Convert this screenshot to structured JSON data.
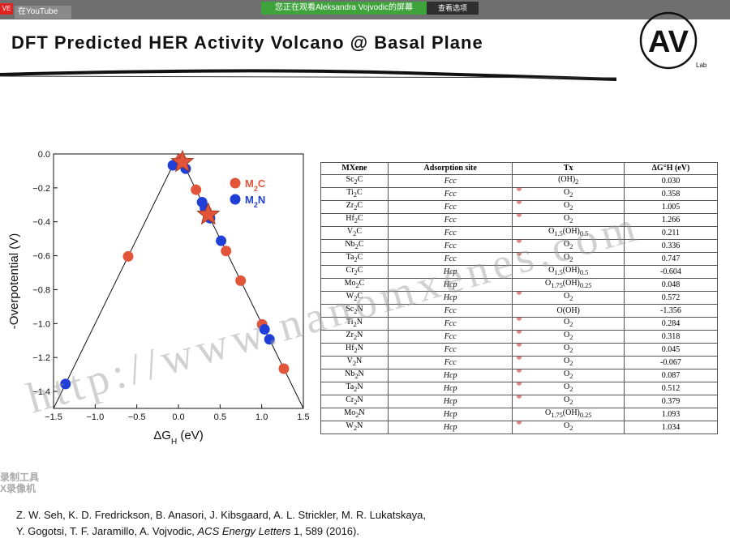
{
  "top_bar": {
    "badge": "VE",
    "youtube_label": "在YouTube",
    "share_banner": "您正在观看Aleksandra Vojvodic的屏幕",
    "share_options": "查看选项"
  },
  "slide": {
    "title": "DFT Predicted HER Activity Volcano @ Basal Plane",
    "logo_text": "AV",
    "logo_sub": "Lab",
    "citation_line1": "Z. W. Seh, K. D. Fredrickson, B. Anasori, J. Kibsgaard, A. L. Strickler, M. R. Lukatskaya,",
    "citation_line2_a": "Y. Gogotsi, T. F. Jaramillo, A. Vojvodic, ",
    "citation_journal": "ACS Energy Letters",
    "citation_line2_b": " 1, 589 (2016).",
    "watermark": "http://www.nanomxenes.com",
    "record_tool_line1": "录制工具",
    "record_tool_line2": "X录像机"
  },
  "colors": {
    "m2c": "#e2553a",
    "m2n": "#1f3fd6",
    "star": "#e2553a",
    "asterisk": "#d02a2a"
  },
  "chart_data": {
    "type": "scatter",
    "xlabel": "ΔG_H (eV)",
    "ylabel": "-Overpotential (V)",
    "xlim": [
      -1.5,
      1.5
    ],
    "ylim": [
      -1.5,
      0.0
    ],
    "x_ticks": [
      "−1.5",
      "−1.0",
      "−0.5",
      "0.0",
      "0.5",
      "1.0",
      "1.5"
    ],
    "y_ticks": [
      "0.0",
      "−0.2",
      "−0.4",
      "−0.6",
      "−0.8",
      "−1.0",
      "−1.2",
      "−1.4"
    ],
    "legend": [
      {
        "name": "M2C",
        "text": "M",
        "sub": "2",
        "tail": "C"
      },
      {
        "name": "M2N",
        "text": "M",
        "sub": "2",
        "tail": "N"
      }
    ],
    "legend_position": "top-right",
    "volcano_line": [
      [
        -1.5,
        -1.5
      ],
      [
        0.0,
        0.0
      ],
      [
        1.5,
        -1.5
      ]
    ],
    "series": [
      {
        "name": "M2C",
        "points": [
          [
            0.03,
            -0.03
          ],
          [
            0.358,
            -0.358
          ],
          [
            1.005,
            -1.005
          ],
          [
            1.266,
            -1.266
          ],
          [
            0.211,
            -0.211
          ],
          [
            0.336,
            -0.336
          ],
          [
            0.747,
            -0.747
          ],
          [
            -0.604,
            -0.604
          ],
          [
            0.048,
            -0.048
          ],
          [
            0.572,
            -0.572
          ]
        ]
      },
      {
        "name": "M2N",
        "points": [
          [
            -1.356,
            -1.356
          ],
          [
            0.284,
            -0.284
          ],
          [
            0.318,
            -0.318
          ],
          [
            0.045,
            -0.045
          ],
          [
            -0.067,
            -0.067
          ],
          [
            0.087,
            -0.087
          ],
          [
            0.512,
            -0.512
          ],
          [
            0.379,
            -0.379
          ],
          [
            1.093,
            -1.093
          ],
          [
            1.034,
            -1.034
          ]
        ]
      }
    ],
    "stars": [
      [
        0.048,
        -0.048
      ],
      [
        0.358,
        -0.358
      ]
    ]
  },
  "table": {
    "headers": [
      "MXene",
      "Adsorption site",
      "Tx",
      "ΔG°H (eV)"
    ],
    "rows": [
      {
        "mxene": "Sc2C",
        "site": "Fcc",
        "tx": "(OH)2",
        "dg": "0.030",
        "mark": false
      },
      {
        "mxene": "Ti2C",
        "site": "Fcc",
        "tx": "O2",
        "dg": "0.358",
        "mark": true
      },
      {
        "mxene": "Zr2C",
        "site": "Fcc",
        "tx": "O2",
        "dg": "1.005",
        "mark": true
      },
      {
        "mxene": "Hf2C",
        "site": "Fcc",
        "tx": "O2",
        "dg": "1.266",
        "mark": true
      },
      {
        "mxene": "V2C",
        "site": "Fcc",
        "tx": "O1.5(OH)0.5",
        "dg": "0.211",
        "mark": false
      },
      {
        "mxene": "Nb2C",
        "site": "Fcc",
        "tx": "O2",
        "dg": "0.336",
        "mark": true
      },
      {
        "mxene": "Ta2C",
        "site": "Fcc",
        "tx": "O2",
        "dg": "0.747",
        "mark": true
      },
      {
        "mxene": "Cr2C",
        "site": "Hcp",
        "tx": "O1.5(OH)0.5",
        "dg": "-0.604",
        "mark": false
      },
      {
        "mxene": "Mo2C",
        "site": "Hcp",
        "tx": "O1.75(OH)0.25",
        "dg": "0.048",
        "mark": false
      },
      {
        "mxene": "W2C",
        "site": "Hcp",
        "tx": "O2",
        "dg": "0.572",
        "mark": true
      },
      {
        "mxene": "Sc2N",
        "site": "Fcc",
        "tx": "O(OH)",
        "dg": "-1.356",
        "mark": false
      },
      {
        "mxene": "Ti2N",
        "site": "Fcc",
        "tx": "O2",
        "dg": "0.284",
        "mark": true
      },
      {
        "mxene": "Zr2N",
        "site": "Fcc",
        "tx": "O2",
        "dg": "0.318",
        "mark": true
      },
      {
        "mxene": "Hf2N",
        "site": "Fcc",
        "tx": "O2",
        "dg": "0.045",
        "mark": true
      },
      {
        "mxene": "V2N",
        "site": "Fcc",
        "tx": "O2",
        "dg": "-0.067",
        "mark": true
      },
      {
        "mxene": "Nb2N",
        "site": "Hcp",
        "tx": "O2",
        "dg": "0.087",
        "mark": true
      },
      {
        "mxene": "Ta2N",
        "site": "Hcp",
        "tx": "O2",
        "dg": "0.512",
        "mark": true
      },
      {
        "mxene": "Cr2N",
        "site": "Hcp",
        "tx": "O2",
        "dg": "0.379",
        "mark": true
      },
      {
        "mxene": "Mo2N",
        "site": "Hcp",
        "tx": "O1.75(OH)0.25",
        "dg": "1.093",
        "mark": false
      },
      {
        "mxene": "W2N",
        "site": "Hcp",
        "tx": "O2",
        "dg": "1.034",
        "mark": true
      }
    ]
  }
}
